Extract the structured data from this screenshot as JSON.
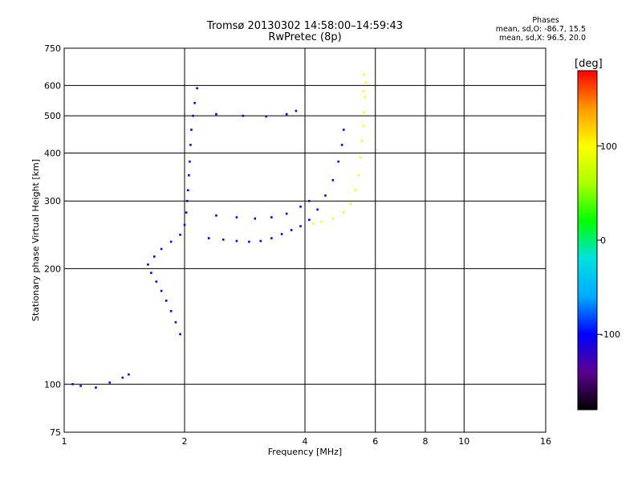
{
  "title": {
    "line1": "Tromsø 20130302 14:58:00–14:59:43",
    "line2": "RwPretec (8p)"
  },
  "phases_info": {
    "heading": "Phases",
    "line_o": "mean, sd,O: -86.7, 15.5",
    "line_x": "mean, sd,X:  96.5, 20.0"
  },
  "colorbar": {
    "label": "[deg]",
    "ticks": [
      "100",
      "0",
      "-100"
    ],
    "tick_values": [
      100,
      0,
      -100
    ],
    "range": [
      -180,
      180
    ],
    "colors": [
      "#000000",
      "#5a0090",
      "#0000ff",
      "#00aaff",
      "#00e0e0",
      "#00ff00",
      "#aaff00",
      "#ffff00",
      "#ff9900",
      "#ff0000"
    ]
  },
  "chart_data": {
    "type": "scatter",
    "xlabel": "Frequency [MHz]",
    "ylabel": "Stationary phase Virtual Height [km]",
    "x_scale": "log",
    "y_scale": "log",
    "xlim": [
      1,
      16
    ],
    "ylim": [
      75,
      750
    ],
    "xticks": [
      "1",
      "2",
      "4",
      "6",
      "8",
      "10",
      "16"
    ],
    "xtick_values": [
      1,
      2,
      4,
      6,
      8,
      10,
      16
    ],
    "yticks": [
      "750",
      "600",
      "500",
      "400",
      "300",
      "200",
      "100",
      "75"
    ],
    "ytick_values": [
      750,
      600,
      500,
      400,
      300,
      200,
      100,
      75
    ],
    "grid": true,
    "series": [
      {
        "mode": "O",
        "phase_deg": -100,
        "points": [
          [
            1.95,
            135
          ],
          [
            1.9,
            145
          ],
          [
            1.85,
            155
          ],
          [
            1.8,
            165
          ],
          [
            1.75,
            175
          ],
          [
            1.7,
            185
          ],
          [
            1.65,
            195
          ],
          [
            1.62,
            205
          ],
          [
            1.68,
            215
          ],
          [
            1.75,
            225
          ],
          [
            1.85,
            235
          ],
          [
            1.95,
            245
          ],
          [
            2.0,
            260
          ],
          [
            2.02,
            280
          ],
          [
            2.03,
            300
          ],
          [
            2.04,
            320
          ],
          [
            2.05,
            350
          ],
          [
            2.06,
            380
          ],
          [
            2.07,
            420
          ],
          [
            2.08,
            460
          ],
          [
            2.1,
            500
          ],
          [
            2.12,
            540
          ],
          [
            2.15,
            590
          ],
          [
            2.3,
            240
          ],
          [
            2.5,
            238
          ],
          [
            2.7,
            236
          ],
          [
            2.9,
            235
          ],
          [
            3.1,
            236
          ],
          [
            3.3,
            240
          ],
          [
            3.5,
            246
          ],
          [
            3.7,
            252
          ],
          [
            3.9,
            258
          ],
          [
            4.1,
            268
          ],
          [
            4.3,
            285
          ],
          [
            4.5,
            310
          ],
          [
            4.7,
            340
          ],
          [
            4.85,
            380
          ],
          [
            4.95,
            420
          ],
          [
            5.0,
            460
          ],
          [
            2.4,
            275
          ],
          [
            2.7,
            272
          ],
          [
            3.0,
            270
          ],
          [
            3.3,
            272
          ],
          [
            3.6,
            278
          ],
          [
            3.9,
            290
          ],
          [
            4.1,
            300
          ],
          [
            2.4,
            505
          ],
          [
            2.8,
            500
          ],
          [
            3.2,
            498
          ],
          [
            3.6,
            505
          ],
          [
            3.8,
            515
          ],
          [
            1.05,
            100
          ],
          [
            1.1,
            99
          ],
          [
            1.2,
            98
          ],
          [
            1.3,
            101
          ],
          [
            1.4,
            104
          ],
          [
            1.45,
            106
          ]
        ]
      },
      {
        "mode": "X",
        "phase_deg": 100,
        "points": [
          [
            4.2,
            262
          ],
          [
            4.4,
            265
          ],
          [
            4.7,
            270
          ],
          [
            5.0,
            280
          ],
          [
            5.2,
            295
          ],
          [
            5.35,
            320
          ],
          [
            5.45,
            350
          ],
          [
            5.5,
            390
          ],
          [
            5.55,
            430
          ],
          [
            5.6,
            470
          ],
          [
            5.62,
            510
          ],
          [
            5.65,
            560
          ],
          [
            5.68,
            610
          ],
          [
            5.62,
            640
          ],
          [
            5.6,
            580
          ]
        ]
      }
    ]
  }
}
